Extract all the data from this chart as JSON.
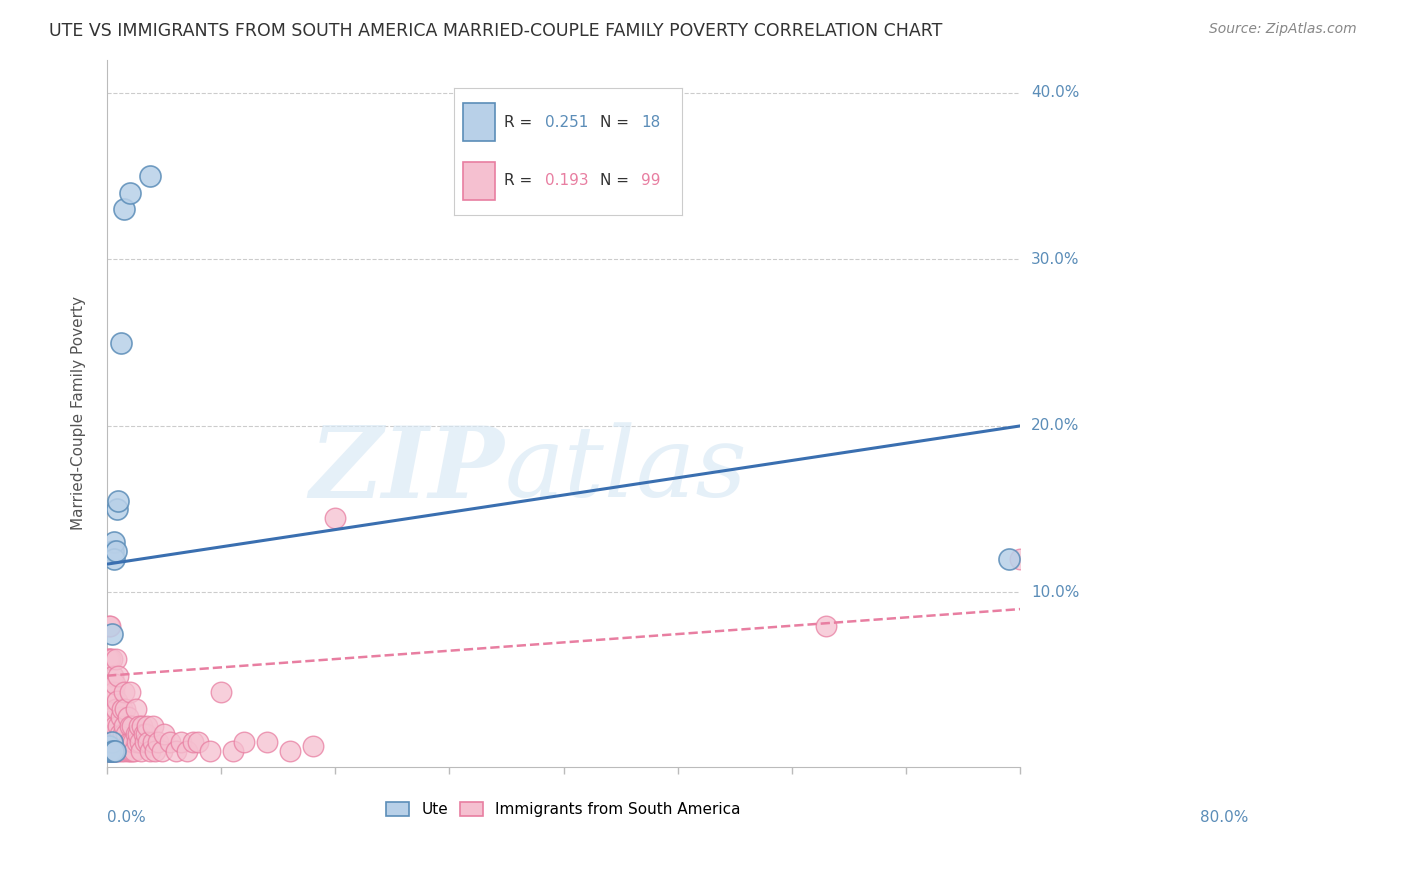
{
  "title": "UTE VS IMMIGRANTS FROM SOUTH AMERICA MARRIED-COUPLE FAMILY POVERTY CORRELATION CHART",
  "source": "Source: ZipAtlas.com",
  "ylabel": "Married-Couple Family Poverty",
  "xlim": [
    0.0,
    0.8
  ],
  "ylim": [
    -0.005,
    0.42
  ],
  "watermark_zip": "ZIP",
  "watermark_atlas": "atlas",
  "legend_r_ute": "0.251",
  "legend_n_ute": "18",
  "legend_r_imm": "0.193",
  "legend_n_imm": "99",
  "ute_color": "#5B8DB8",
  "ute_face": "#B8D0E8",
  "imm_color": "#E87EA1",
  "imm_face": "#F5C0D0",
  "ute_x": [
    0.002,
    0.002,
    0.003,
    0.004,
    0.004,
    0.005,
    0.005,
    0.006,
    0.006,
    0.007,
    0.008,
    0.009,
    0.01,
    0.012,
    0.015,
    0.02,
    0.038,
    0.79
  ],
  "ute_y": [
    0.005,
    0.008,
    0.005,
    0.01,
    0.075,
    0.005,
    0.125,
    0.13,
    0.12,
    0.005,
    0.125,
    0.15,
    0.155,
    0.25,
    0.33,
    0.34,
    0.35,
    0.12
  ],
  "imm_x": [
    0.001,
    0.001,
    0.001,
    0.001,
    0.001,
    0.002,
    0.002,
    0.002,
    0.002,
    0.002,
    0.002,
    0.003,
    0.003,
    0.003,
    0.003,
    0.003,
    0.003,
    0.004,
    0.004,
    0.004,
    0.004,
    0.004,
    0.005,
    0.005,
    0.005,
    0.005,
    0.006,
    0.006,
    0.006,
    0.007,
    0.007,
    0.007,
    0.008,
    0.008,
    0.008,
    0.009,
    0.009,
    0.01,
    0.01,
    0.01,
    0.011,
    0.012,
    0.012,
    0.013,
    0.013,
    0.014,
    0.015,
    0.015,
    0.015,
    0.016,
    0.016,
    0.017,
    0.018,
    0.018,
    0.019,
    0.02,
    0.02,
    0.02,
    0.021,
    0.022,
    0.022,
    0.023,
    0.024,
    0.025,
    0.025,
    0.026,
    0.027,
    0.028,
    0.029,
    0.03,
    0.031,
    0.032,
    0.033,
    0.034,
    0.035,
    0.036,
    0.038,
    0.04,
    0.04,
    0.042,
    0.045,
    0.048,
    0.05,
    0.055,
    0.06,
    0.065,
    0.07,
    0.075,
    0.08,
    0.09,
    0.1,
    0.11,
    0.12,
    0.14,
    0.16,
    0.18,
    0.2,
    0.63,
    0.8
  ],
  "imm_y": [
    0.005,
    0.01,
    0.02,
    0.04,
    0.06,
    0.005,
    0.01,
    0.02,
    0.04,
    0.06,
    0.08,
    0.005,
    0.01,
    0.02,
    0.035,
    0.06,
    0.08,
    0.005,
    0.01,
    0.02,
    0.04,
    0.06,
    0.005,
    0.01,
    0.025,
    0.05,
    0.005,
    0.015,
    0.04,
    0.005,
    0.02,
    0.045,
    0.01,
    0.03,
    0.06,
    0.01,
    0.035,
    0.005,
    0.02,
    0.05,
    0.015,
    0.005,
    0.025,
    0.01,
    0.03,
    0.015,
    0.005,
    0.02,
    0.04,
    0.01,
    0.03,
    0.015,
    0.005,
    0.025,
    0.01,
    0.005,
    0.02,
    0.04,
    0.01,
    0.005,
    0.02,
    0.01,
    0.005,
    0.015,
    0.03,
    0.01,
    0.015,
    0.02,
    0.01,
    0.005,
    0.02,
    0.015,
    0.01,
    0.015,
    0.02,
    0.01,
    0.005,
    0.01,
    0.02,
    0.005,
    0.01,
    0.005,
    0.015,
    0.01,
    0.005,
    0.01,
    0.005,
    0.01,
    0.01,
    0.005,
    0.04,
    0.005,
    0.01,
    0.01,
    0.005,
    0.008,
    0.145,
    0.08,
    0.12
  ],
  "ute_trend_x": [
    0.0,
    0.8
  ],
  "ute_trend_y": [
    0.117,
    0.2
  ],
  "imm_trend_x": [
    0.0,
    0.8
  ],
  "imm_trend_y": [
    0.05,
    0.09
  ],
  "background_color": "#ffffff",
  "grid_color": "#cccccc",
  "title_color": "#333333",
  "axis_label_color": "#5B8DB8",
  "text_color": "#333333"
}
